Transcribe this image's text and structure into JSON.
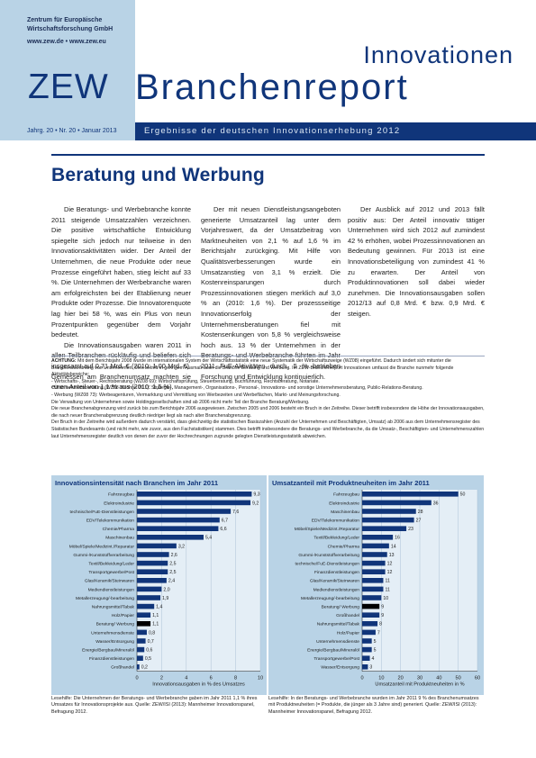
{
  "header": {
    "institute_line1": "Zentrum für Europäische",
    "institute_line2": "Wirtschaftsforschung GmbH",
    "web": "www.zew.de • www.zew.eu",
    "logo": "ZEW",
    "title_top": "Innovationen",
    "title_main": "Branchenreport",
    "issue": "Jahrg. 20 • Nr. 20 • Januar 2013",
    "subtitle": "Ergebnisse der deutschen Innovationserhebung 2012"
  },
  "colors": {
    "navy": "#10357a",
    "lightblue": "#b9d3e6",
    "bar": "#10357a",
    "bar_highlight": "#000000"
  },
  "article": {
    "heading": "Beratung und Werbung",
    "paragraphs": [
      "Die Beratungs- und Werbebranche konnte 2011 steigende Umsatzzahlen verzeichnen. Die positive wirtschaftliche Entwicklung spiegelte sich jedoch nur teilweise in den Innovationsaktivitäten wider. Der Anteil der Unternehmen, die neue Produkte oder neue Prozesse eingeführt haben, stieg leicht auf 33 %. Die Unternehmen der Werbebranche waren am erfolgreichsten bei der Etablierung neuer Produkte oder Prozesse. Die Innovatorenquote lag hier bei 58 %, was ein Plus von neun Prozentpunkten gegenüber dem Vorjahr bedeutet.",
      "Die Innovationsausgaben waren 2011 in allen Teilbranchen rückläufig und beliefen sich insgesamt auf 0,71 Mrd. € (2010: 1,00 Mrd. €). Gemessen am Branchenumsatz machten sie einen Anteil von 1,1 % aus (2010: 1,5 %).",
      "Der mit neuen Dienstleistungsangeboten generierte Umsatzanteil lag unter dem Vorjahreswert, da der Umsatzbeitrag von Marktneuheiten von 2,1 % auf 1,6 % im Berichtsjahr zurückging. Mit Hilfe von Qualitätsverbesserungen wurde ein Umsatzanstieg von 3,1 % erzielt. Die Kostenreinsparungen durch Prozessinnovationen stiegen merklich auf 3,0 % an (2010: 1,6 %). Der prozessseitige Innovationserfolg der Unternehmensberatungen fiel mit Kostensenkungen von 5,8 % vergleichsweise hoch aus. 13 % der Unternehmen in der Beratungs- und Werbebranche führten im Jahr 2011 FuE-Aktivitäten durch. 5 % betrieben Forschung und Entwicklung kontinuierlich.",
      "Der Ausblick auf 2012 und 2013 fällt positiv aus: Der Anteil innovativ tätiger Unternehmen wird sich 2012 auf zumindest 42 % erhöhen, wobei Prozessinnovationen an Bedeutung gewinnen. Für 2013 ist eine Innovationsbeteiligung von zumindest 41 % zu erwarten. Der Anteil von Produktinnovationen soll dabei wieder zunehmen. Die Innovationsausgaben sollen 2012/13 auf 0,8 Mrd. € bzw. 0,9 Mrd. € steigen."
    ]
  },
  "note": {
    "label": "ACHTUNG:",
    "lines": [
      "Mit dem Berichtsjahr 2008 wurde im internationalen System der Wirtschaftsstatistik eine neue Systematik der Wirtschaftszweige (WZ08) eingeführt. Dadurch ändert sich mitunter die Branchenzuordnung von Unternehmen. Dies betrifft in geringem Ausmaß auch die Branche Beratung und Werbung. Im ZEW-Branchenreport Innovationen umfasst die Branche nunmehr folgende Aktivitätsbereiche:",
      "- Wirtschafts-, Steuer-, Rechtsberatung (WZ08 69): Wirtschaftsprüfung, Steuerberatung, Buchführung, Rechtsberatung, Notariate.",
      "- Unternehmensberatung (WZ08 70 ohne 70.1): Strategie-, Management-, Organisations-, Personal-, Innovations- und sonstige Unternehmensberatung, Public-Relations-Beratung.",
      "- Werbung (WZ08 73): Werbeagenturen, Vermarktung und Vermittlung von Werbezeiten und Werbeflächen, Markt- und Meinungsforschung.",
      "Die Verwaltung von Unternehmen sowie Holdinggesellschaften sind ab 2006 nicht mehr Teil der Branche Beratung/Werbung.",
      "Die neue Branchenabgrenzung wird zurück bis zum Berichtsjahr 2006 ausgewiesen. Zwischen 2005 und 2006 besteht ein Bruch in der Zeitreihe. Dieser betrifft insbesondere die Höhe der Innovationsausgaben, die nach neuer Branchenabgrenzung deutlich niedriger liegt als nach alter Branchenabgrenzung.",
      "Der Bruch in der Zeitreihe wird außerdem dadurch verstärkt, dass gleichzeitig die statistischen Basiszahlen (Anzahl der Unternehmen und Beschäftigten, Umsatz) ab 2006 aus dem Unternehmensregister des Statistischen Bundesamts (und nicht mehr, wie zuvor, aus den Fachstatistiken) stammen. Dies betrifft insbesondere die Beratungs- und Werbebranche, da die Umsatz-, Beschäftigten- und Unternehmenszahlen laut Unternehmensregister deutlich von denen der zuvor der Hochrechnungen zugrunde gelegten Dienstleistungsstatistik abweichen."
    ]
  },
  "chart_data": [
    {
      "type": "bar",
      "orientation": "horizontal",
      "title": "Innovationsintensität nach Branchen im Jahr 2011",
      "xlabel": "Innovationsausgaben in % des Umsatzes",
      "xlim": [
        0,
        10
      ],
      "xticks": [
        "0",
        "2",
        "4",
        "6",
        "8",
        "10"
      ],
      "highlight": "Beratung/ Werbung",
      "categories": [
        "Fahrzeugbau",
        "Elektroindustrie",
        "technische/FuE-Dienstleistungen",
        "EDV/Telekommunikation",
        "Chemie/Pharma",
        "Maschinenbau",
        "Möbel/Spiele/Medizint./Reparatur",
        "Gummi-/Kunststoffverarbeitung",
        "Textil/Bekleidung/Leder",
        "Transportgewerbe/Post",
        "Glas/Keramik/Steinwaren",
        "Mediendienstleistungen",
        "Metallerzeugung/-bearbeitung",
        "Nahrungsmittel/Tabak",
        "Holz/Papier",
        "Beratung/ Werbung",
        "Unternehmensdienste",
        "Wasser/Entsorgung",
        "Energie/Bergbau/Mineralöl",
        "Finanzdienstleistungen",
        "Großhandel"
      ],
      "values": [
        9.3,
        9.2,
        7.6,
        6.7,
        6.6,
        5.4,
        3.2,
        2.6,
        2.5,
        2.5,
        2.4,
        2.0,
        1.9,
        1.4,
        1.1,
        1.1,
        0.8,
        0.7,
        0.6,
        0.5,
        0.2
      ],
      "value_labels": [
        "9,3",
        "9,2",
        "7,6",
        "6,7",
        "6,6",
        "5,4",
        "3,2",
        "2,6",
        "2,5",
        "2,5",
        "2,4",
        "2,0",
        "1,9",
        "1,4",
        "1,1",
        "1,1",
        "0,8",
        "0,7",
        "0,6",
        "0,5",
        "0,2"
      ]
    },
    {
      "type": "bar",
      "orientation": "horizontal",
      "title": "Umsatzanteil mit Produktneuheiten im Jahr 2011",
      "xlabel": "Umsatzanteil mit Produktneuheiten in %",
      "xlim": [
        0,
        60
      ],
      "xticks": [
        "0",
        "10",
        "20",
        "30",
        "40",
        "50",
        "60"
      ],
      "highlight": "Beratung/ Werbung",
      "categories": [
        "Fahrzeugbau",
        "Elektroindustrie",
        "Maschinenbau",
        "EDV/Telekommunikation",
        "Möbel/Spiele/Medizint./Reparatur",
        "Textil/Bekleidung/Leder",
        "Chemie/Pharma",
        "Gummi-/Kunststoffverarbeitung",
        "technische/FuE-Dienstleistungen",
        "Finanzdienstleistungen",
        "Glas/Keramik/Steinwaren",
        "Mediendienstleistungen",
        "Metallerzeugung/-bearbeitung",
        "Beratung/ Werbung",
        "Großhandel",
        "Nahrungsmittel/Tabak",
        "Holz/Papier",
        "Unternehmensdienste",
        "Energie/Bergbau/Mineralöl",
        "Transportgewerbe/Post",
        "Wasser/Entsorgung"
      ],
      "values": [
        50,
        36,
        28,
        27,
        23,
        16,
        14,
        13,
        12,
        12,
        11,
        11,
        10,
        9,
        9,
        8,
        7,
        5,
        5,
        4,
        3
      ],
      "value_labels": [
        "50",
        "36",
        "28",
        "27",
        "23",
        "16",
        "14",
        "13",
        "12",
        "12",
        "11",
        "11",
        "10",
        "9",
        "9",
        "8",
        "7",
        "5",
        "5",
        "4",
        "3"
      ]
    }
  ],
  "captions": [
    "Lesehilfe: Die Unternehmen der Beratungs- und Werbebranche gaben im Jahr 2011 1,1 % ihres Umsatzes für Innovationsprojekte aus. Quelle: ZEW/ISI (2013): Mannheimer Innovationspanel, Befragung 2012.",
    "Lesehilfe: In der Beratungs- und Werbebranche wurden im Jahr 2011 9 % des Branchenumsatzes mit Produktneuheiten (= Produkte, die jünger als 3 Jahre sind) generiert. Quelle: ZEW/ISI (2013): Mannheimer Innovationspanel, Befragung 2012."
  ]
}
